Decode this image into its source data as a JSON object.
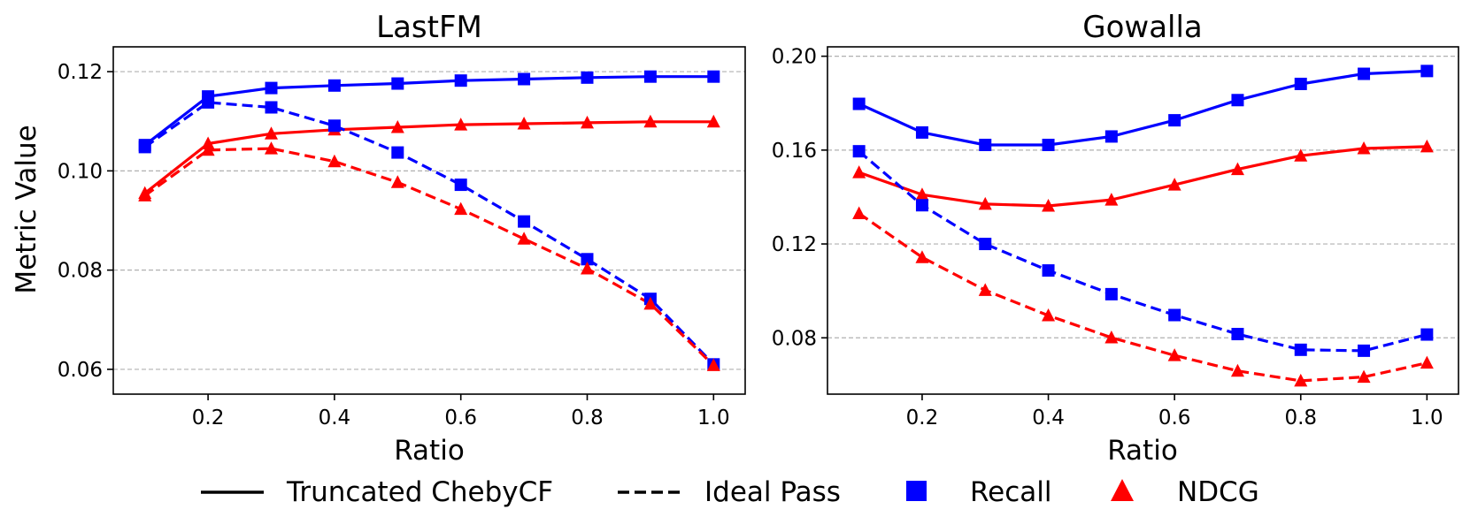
{
  "chart_data": [
    {
      "type": "line",
      "title": "LastFM",
      "xlabel": "Ratio",
      "ylabel": "Metric Value",
      "xlim": [
        0.05,
        1.05
      ],
      "ylim": [
        0.055,
        0.125
      ],
      "xticks": [
        "0.2",
        "0.4",
        "0.6",
        "0.8",
        "1.0"
      ],
      "yticks": [
        "0.06",
        "0.08",
        "0.10",
        "0.12"
      ],
      "grid": "y-dashed",
      "x": [
        0.1,
        0.2,
        0.3,
        0.4,
        0.5,
        0.6,
        0.7,
        0.8,
        0.9,
        1.0
      ],
      "series": [
        {
          "name": "Truncated ChebyCF Recall",
          "method": "Truncated ChebyCF",
          "metric": "Recall",
          "values": [
            0.1052,
            0.115,
            0.1167,
            0.1172,
            0.1176,
            0.1182,
            0.1185,
            0.1188,
            0.119,
            0.119
          ]
        },
        {
          "name": "Truncated ChebyCF NDCG",
          "method": "Truncated ChebyCF",
          "metric": "NDCG",
          "values": [
            0.0955,
            0.1055,
            0.1075,
            0.1083,
            0.1088,
            0.1093,
            0.1095,
            0.1097,
            0.1099,
            0.1099
          ]
        },
        {
          "name": "Ideal Pass Recall",
          "method": "Ideal Pass",
          "metric": "Recall",
          "values": [
            0.1048,
            0.1138,
            0.1128,
            0.1091,
            0.1037,
            0.0972,
            0.0898,
            0.0822,
            0.0742,
            0.061
          ]
        },
        {
          "name": "Ideal Pass NDCG",
          "method": "Ideal Pass",
          "metric": "NDCG",
          "values": [
            0.095,
            0.1042,
            0.1045,
            0.1019,
            0.0977,
            0.0923,
            0.0863,
            0.0803,
            0.0732,
            0.0608
          ]
        }
      ]
    },
    {
      "type": "line",
      "title": "Gowalla",
      "xlabel": "Ratio",
      "ylabel": "",
      "xlim": [
        0.05,
        1.05
      ],
      "ylim": [
        0.056,
        0.204
      ],
      "xticks": [
        "0.2",
        "0.4",
        "0.6",
        "0.8",
        "1.0"
      ],
      "yticks": [
        "0.08",
        "0.12",
        "0.16",
        "0.20"
      ],
      "grid": "y-dashed",
      "x": [
        0.1,
        0.2,
        0.3,
        0.4,
        0.5,
        0.6,
        0.7,
        0.8,
        0.9,
        1.0
      ],
      "series": [
        {
          "name": "Truncated ChebyCF Recall",
          "method": "Truncated ChebyCF",
          "metric": "Recall",
          "values": [
            0.1797,
            0.1675,
            0.1622,
            0.1622,
            0.1658,
            0.1727,
            0.1813,
            0.1882,
            0.1925,
            0.1937
          ]
        },
        {
          "name": "Truncated ChebyCF NDCG",
          "method": "Truncated ChebyCF",
          "metric": "NDCG",
          "values": [
            0.1505,
            0.141,
            0.137,
            0.1362,
            0.1388,
            0.1452,
            0.1518,
            0.1576,
            0.1607,
            0.1615
          ]
        },
        {
          "name": "Ideal Pass Recall",
          "method": "Ideal Pass",
          "metric": "Recall",
          "values": [
            0.1595,
            0.1365,
            0.12,
            0.1087,
            0.0986,
            0.0897,
            0.0816,
            0.0749,
            0.0745,
            0.0814
          ]
        },
        {
          "name": "Ideal Pass NDCG",
          "method": "Ideal Pass",
          "metric": "NDCG",
          "values": [
            0.133,
            0.1143,
            0.1003,
            0.0895,
            0.0801,
            0.0725,
            0.0659,
            0.0617,
            0.0633,
            0.0693
          ]
        }
      ]
    }
  ],
  "legend": {
    "position": "bottom",
    "items": [
      {
        "label": "Truncated ChebyCF",
        "kind": "solid-line",
        "color": "#000000"
      },
      {
        "label": "Ideal Pass",
        "kind": "dashed-line",
        "color": "#000000"
      },
      {
        "label": "Recall",
        "kind": "square-marker",
        "color": "#0000ff"
      },
      {
        "label": "NDCG",
        "kind": "triangle-marker",
        "color": "#ff0000"
      }
    ]
  },
  "colors": {
    "recall": "#0000ff",
    "ndcg": "#ff0000",
    "grid": "#b0b0b0",
    "axis": "#000000"
  }
}
